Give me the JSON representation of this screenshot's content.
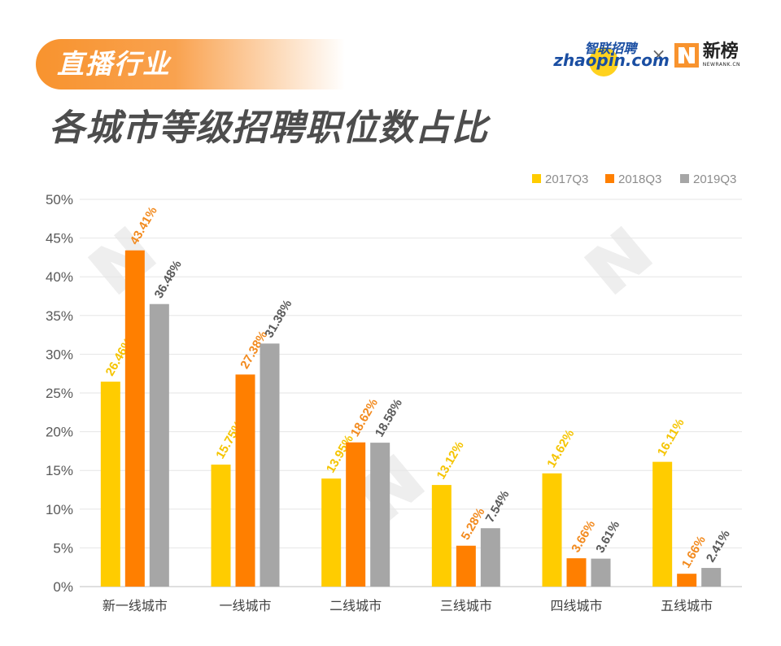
{
  "header": {
    "tag": "直播行业",
    "title": "各城市等级招聘职位数占比"
  },
  "logos": {
    "zhaopin_cn": "智联招聘",
    "zhaopin_en": "zhaopin.com",
    "separator": "×",
    "newrank_cn": "新榜",
    "newrank_en": "NEWRANK.CN"
  },
  "colors": {
    "accent": "#f8932e",
    "s2017": "#ffcc00",
    "s2018": "#ff7f00",
    "s2019": "#a6a6a6",
    "label2017": "#f5c400",
    "label2018": "#f28a1e",
    "label2019": "#595959"
  },
  "chart_data": {
    "type": "bar",
    "categories": [
      "新一线城市",
      "一线城市",
      "二线城市",
      "三线城市",
      "四线城市",
      "五线城市"
    ],
    "series": [
      {
        "name": "2017Q3",
        "values": [
          26.46,
          15.75,
          13.95,
          13.12,
          14.62,
          16.11
        ],
        "labels": [
          "26.46%",
          "15.75%",
          "13.95%",
          "13.12%",
          "14.62%",
          "16.11%"
        ]
      },
      {
        "name": "2018Q3",
        "values": [
          43.41,
          27.38,
          18.62,
          5.28,
          3.66,
          1.66
        ],
        "labels": [
          "43.41%",
          "27.38%",
          "18.62%",
          "5.28%",
          "3.66%",
          "1.66%"
        ]
      },
      {
        "name": "2019Q3",
        "values": [
          36.48,
          31.38,
          18.58,
          7.54,
          3.61,
          2.41
        ],
        "labels": [
          "36.48%",
          "31.38%",
          "18.58%",
          "7.54%",
          "3.61%",
          "2.41%"
        ]
      }
    ],
    "yticks": [
      "0%",
      "5%",
      "10%",
      "15%",
      "20%",
      "25%",
      "30%",
      "35%",
      "40%",
      "45%",
      "50%"
    ],
    "ylim": [
      0,
      50
    ],
    "grid": true,
    "legend": "top-right"
  }
}
